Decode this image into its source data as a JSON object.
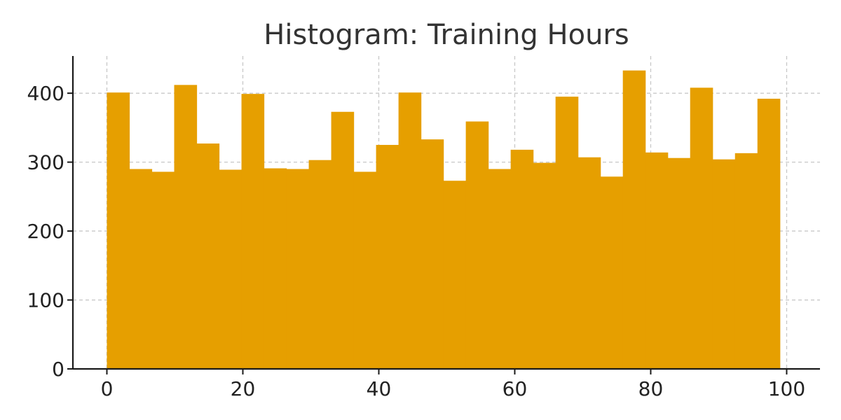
{
  "chart_data": {
    "type": "bar",
    "title": "Histogram: Training Hours",
    "xlabel": "",
    "ylabel": "",
    "xlim": [
      -5,
      104.9
    ],
    "ylim": [
      0,
      454
    ],
    "bin_start": 0,
    "bin_width": 3.3,
    "values": [
      401,
      290,
      286,
      412,
      327,
      289,
      399,
      291,
      290,
      303,
      373,
      286,
      325,
      401,
      333,
      273,
      359,
      290,
      318,
      299,
      395,
      307,
      279,
      433,
      314,
      306,
      408,
      304,
      313,
      392
    ],
    "x_ticks": [
      0,
      20,
      40,
      60,
      80,
      100
    ],
    "y_ticks": [
      0,
      100,
      200,
      300,
      400
    ],
    "grid": true,
    "legend": false,
    "colors": {
      "bar": "#E69F00",
      "axis": "#1a1a1a",
      "grid": "#c8c8c8",
      "text": "#333333"
    }
  }
}
